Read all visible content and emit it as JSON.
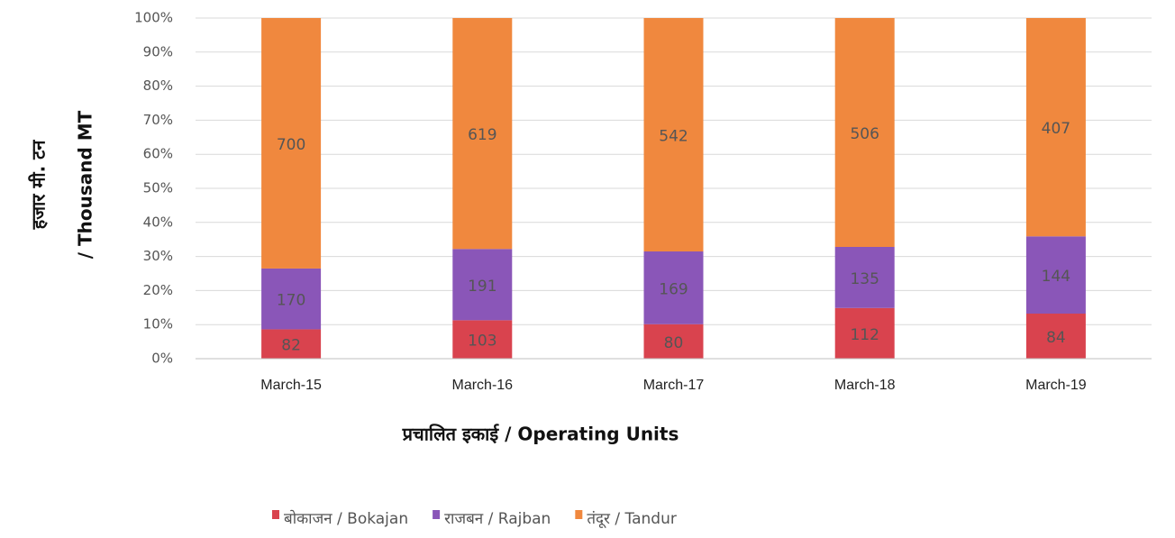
{
  "chart_data": {
    "type": "bar",
    "stacking": "percent",
    "categories": [
      "March-15",
      "March-16",
      "March-17",
      "March-18",
      "March-19"
    ],
    "series": [
      {
        "name": "बोकाजन / Bokajan",
        "color": "#d9434e",
        "values": [
          82,
          103,
          80,
          112,
          84
        ]
      },
      {
        "name": "राजबन / Rajban",
        "color": "#8a56b8",
        "values": [
          170,
          191,
          169,
          135,
          144
        ]
      },
      {
        "name": "तंदूर / Tandur",
        "color": "#f0883e",
        "values": [
          700,
          619,
          542,
          506,
          407
        ]
      }
    ],
    "ylim": [
      0,
      100
    ],
    "yticks": [
      {
        "value": 0,
        "label": "0%"
      },
      {
        "value": 10,
        "label": "10%"
      },
      {
        "value": 20,
        "label": "20%"
      },
      {
        "value": 30,
        "label": "30%"
      },
      {
        "value": 40,
        "label": "40%"
      },
      {
        "value": 50,
        "label": "50%"
      },
      {
        "value": 60,
        "label": "60%"
      },
      {
        "value": 70,
        "label": "70%"
      },
      {
        "value": 80,
        "label": "80%"
      },
      {
        "value": 90,
        "label": "90%"
      },
      {
        "value": 100,
        "label": "100%"
      }
    ],
    "y_label": [
      "हजार मी. टन",
      "/ Thousand MT"
    ],
    "x_label": "प्रचालित इकाई / Operating Units",
    "grid": true,
    "legend": "bottom"
  }
}
